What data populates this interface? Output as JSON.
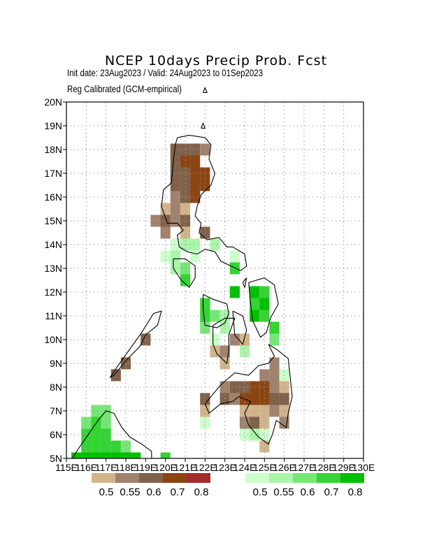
{
  "header": {
    "title": "NCEP 10days Precip Prob. Fcst",
    "subtitle_dates": "Init date: 23Aug2023 / Valid: 24Aug2023 to 01Sep2023",
    "subtitle_method": "Reg Calibrated (GCM-empirical)"
  },
  "axes": {
    "lat_labels": [
      "20N",
      "19N",
      "18N",
      "17N",
      "16N",
      "15N",
      "14N",
      "13N",
      "12N",
      "11N",
      "10N",
      "9N",
      "8N",
      "7N",
      "6N",
      "5N"
    ],
    "lon_labels": [
      "115E",
      "116E",
      "117E",
      "118E",
      "119E",
      "120E",
      "121E",
      "122E",
      "123E",
      "124E",
      "125E",
      "126E",
      "127E",
      "128E",
      "129E",
      "130E"
    ]
  },
  "legend": {
    "dry": {
      "colors": [
        "#d2b48c",
        "#a0826d",
        "#80624a",
        "#8b4513",
        "#a52a2a"
      ],
      "labels": [
        "0.5",
        "0.55",
        "0.6",
        "0.7",
        "0.8"
      ]
    },
    "wet": {
      "colors": [
        "#ccffcc",
        "#aaf5aa",
        "#77e677",
        "#33d433",
        "#00c000"
      ],
      "labels": [
        "0.5",
        "0.55",
        "0.6",
        "0.7",
        "0.8"
      ]
    }
  },
  "map_data": {
    "extent": {
      "lon": [
        115,
        130
      ],
      "lat": [
        5,
        20
      ]
    },
    "cell_size_deg": 0.5,
    "colors": {
      "dry_50": "#d2b48c",
      "dry_55": "#a0826d",
      "dry_60": "#80624a",
      "dry_70": "#8b4513",
      "wet_50": "#ccffcc",
      "wet_55": "#aaf5aa",
      "wet_60": "#77e677",
      "wet_70": "#33d433",
      "wet_80": "#00c000"
    },
    "cells": [
      {
        "lon": 119,
        "lat": 10,
        "c": "dry_60"
      },
      {
        "lon": 118,
        "lat": 9,
        "c": "dry_60"
      },
      {
        "lon": 117.5,
        "lat": 8.5,
        "c": "dry_60"
      },
      {
        "lon": 121,
        "lat": 18,
        "c": "dry_60"
      },
      {
        "lon": 120.5,
        "lat": 18,
        "c": "dry_60"
      },
      {
        "lon": 121.5,
        "lat": 18,
        "c": "dry_60"
      },
      {
        "lon": 122,
        "lat": 18,
        "c": "dry_55"
      },
      {
        "lon": 120.5,
        "lat": 17.5,
        "c": "dry_60"
      },
      {
        "lon": 121,
        "lat": 17.5,
        "c": "dry_70"
      },
      {
        "lon": 121.5,
        "lat": 17.5,
        "c": "dry_70"
      },
      {
        "lon": 120.5,
        "lat": 17,
        "c": "dry_60"
      },
      {
        "lon": 121,
        "lat": 17,
        "c": "dry_60"
      },
      {
        "lon": 121.5,
        "lat": 17,
        "c": "dry_70"
      },
      {
        "lon": 122,
        "lat": 17,
        "c": "dry_70"
      },
      {
        "lon": 120.5,
        "lat": 16.5,
        "c": "dry_60"
      },
      {
        "lon": 121,
        "lat": 16.5,
        "c": "dry_60"
      },
      {
        "lon": 121.5,
        "lat": 16.5,
        "c": "dry_70"
      },
      {
        "lon": 122,
        "lat": 16.5,
        "c": "dry_70"
      },
      {
        "lon": 120.5,
        "lat": 16,
        "c": "dry_55"
      },
      {
        "lon": 121,
        "lat": 16,
        "c": "dry_60"
      },
      {
        "lon": 121.5,
        "lat": 16,
        "c": "dry_70"
      },
      {
        "lon": 120,
        "lat": 15.5,
        "c": "dry_50"
      },
      {
        "lon": 120.5,
        "lat": 15.5,
        "c": "dry_55"
      },
      {
        "lon": 121,
        "lat": 15.5,
        "c": "dry_50"
      },
      {
        "lon": 119.5,
        "lat": 15,
        "c": "dry_55"
      },
      {
        "lon": 120,
        "lat": 15,
        "c": "dry_60"
      },
      {
        "lon": 120.5,
        "lat": 15,
        "c": "dry_55"
      },
      {
        "lon": 121,
        "lat": 15,
        "c": "dry_60"
      },
      {
        "lon": 120,
        "lat": 14.5,
        "c": "dry_55"
      },
      {
        "lon": 121,
        "lat": 14.5,
        "c": "dry_50"
      },
      {
        "lon": 122,
        "lat": 14.5,
        "c": "dry_60"
      },
      {
        "lon": 120.5,
        "lat": 14,
        "c": "wet_50"
      },
      {
        "lon": 121,
        "lat": 14,
        "c": "wet_55"
      },
      {
        "lon": 121.5,
        "lat": 14,
        "c": "wet_55"
      },
      {
        "lon": 122.5,
        "lat": 14,
        "c": "wet_55"
      },
      {
        "lon": 120,
        "lat": 13.5,
        "c": "wet_50"
      },
      {
        "lon": 120.5,
        "lat": 13.5,
        "c": "wet_55"
      },
      {
        "lon": 121.5,
        "lat": 13.5,
        "c": "wet_50"
      },
      {
        "lon": 123.5,
        "lat": 13.5,
        "c": "wet_50"
      },
      {
        "lon": 120.5,
        "lat": 13,
        "c": "wet_55"
      },
      {
        "lon": 121,
        "lat": 13,
        "c": "wet_60"
      },
      {
        "lon": 123.5,
        "lat": 13,
        "c": "wet_70"
      },
      {
        "lon": 121,
        "lat": 12.5,
        "c": "wet_70"
      },
      {
        "lon": 123.5,
        "lat": 12,
        "c": "wet_80"
      },
      {
        "lon": 124.5,
        "lat": 12,
        "c": "wet_80"
      },
      {
        "lon": 125,
        "lat": 12,
        "c": "wet_70"
      },
      {
        "lon": 122,
        "lat": 11.5,
        "c": "wet_70"
      },
      {
        "lon": 124.5,
        "lat": 11.5,
        "c": "wet_70"
      },
      {
        "lon": 125,
        "lat": 11.5,
        "c": "wet_80"
      },
      {
        "lon": 122,
        "lat": 11,
        "c": "wet_70"
      },
      {
        "lon": 122.5,
        "lat": 11,
        "c": "wet_60"
      },
      {
        "lon": 123,
        "lat": 11,
        "c": "wet_55"
      },
      {
        "lon": 124.5,
        "lat": 11,
        "c": "wet_80"
      },
      {
        "lon": 125,
        "lat": 11,
        "c": "wet_70"
      },
      {
        "lon": 122,
        "lat": 10.5,
        "c": "wet_60"
      },
      {
        "lon": 123,
        "lat": 10.5,
        "c": "wet_55"
      },
      {
        "lon": 125.5,
        "lat": 10.5,
        "c": "wet_70"
      },
      {
        "lon": 122.5,
        "lat": 10,
        "c": "wet_50"
      },
      {
        "lon": 123.5,
        "lat": 10,
        "c": "dry_55"
      },
      {
        "lon": 124,
        "lat": 10,
        "c": "dry_50"
      },
      {
        "lon": 125.5,
        "lat": 10,
        "c": "wet_60"
      },
      {
        "lon": 122.5,
        "lat": 9.5,
        "c": "dry_50"
      },
      {
        "lon": 123,
        "lat": 9.5,
        "c": "dry_55"
      },
      {
        "lon": 124,
        "lat": 9.5,
        "c": "wet_55"
      },
      {
        "lon": 123,
        "lat": 9,
        "c": "dry_50"
      },
      {
        "lon": 125.5,
        "lat": 9,
        "c": "dry_55"
      },
      {
        "lon": 125,
        "lat": 8.5,
        "c": "dry_55"
      },
      {
        "lon": 125.5,
        "lat": 8.5,
        "c": "dry_55"
      },
      {
        "lon": 126,
        "lat": 8.5,
        "c": "wet_50"
      },
      {
        "lon": 123,
        "lat": 8,
        "c": "dry_55"
      },
      {
        "lon": 123.5,
        "lat": 8,
        "c": "dry_60"
      },
      {
        "lon": 124,
        "lat": 8,
        "c": "dry_60"
      },
      {
        "lon": 124.5,
        "lat": 8,
        "c": "dry_70"
      },
      {
        "lon": 125,
        "lat": 8,
        "c": "dry_70"
      },
      {
        "lon": 125.5,
        "lat": 8,
        "c": "dry_55"
      },
      {
        "lon": 126,
        "lat": 8,
        "c": "dry_50"
      },
      {
        "lon": 122,
        "lat": 7.5,
        "c": "dry_60"
      },
      {
        "lon": 123,
        "lat": 7.5,
        "c": "dry_60"
      },
      {
        "lon": 123.5,
        "lat": 7.5,
        "c": "dry_55"
      },
      {
        "lon": 124,
        "lat": 7.5,
        "c": "dry_70"
      },
      {
        "lon": 124.5,
        "lat": 7.5,
        "c": "dry_70"
      },
      {
        "lon": 125,
        "lat": 7.5,
        "c": "dry_70"
      },
      {
        "lon": 125.5,
        "lat": 7.5,
        "c": "dry_60"
      },
      {
        "lon": 126,
        "lat": 7.5,
        "c": "dry_60"
      },
      {
        "lon": 122,
        "lat": 7,
        "c": "dry_50"
      },
      {
        "lon": 124,
        "lat": 7,
        "c": "dry_50"
      },
      {
        "lon": 124.5,
        "lat": 7,
        "c": "dry_50"
      },
      {
        "lon": 125,
        "lat": 7,
        "c": "dry_50"
      },
      {
        "lon": 125.5,
        "lat": 7,
        "c": "dry_55"
      },
      {
        "lon": 126,
        "lat": 7,
        "c": "dry_50"
      },
      {
        "lon": 122,
        "lat": 6.5,
        "c": "wet_50"
      },
      {
        "lon": 124,
        "lat": 6.5,
        "c": "dry_55"
      },
      {
        "lon": 124.5,
        "lat": 6.5,
        "c": "dry_60"
      },
      {
        "lon": 125,
        "lat": 6.5,
        "c": "dry_50"
      },
      {
        "lon": 126,
        "lat": 6.5,
        "c": "dry_55"
      },
      {
        "lon": 124,
        "lat": 6,
        "c": "wet_50"
      },
      {
        "lon": 124.5,
        "lat": 6,
        "c": "wet_55"
      },
      {
        "lon": 125,
        "lat": 6,
        "c": "wet_50"
      },
      {
        "lon": 125,
        "lat": 5.5,
        "c": "dry_50"
      },
      {
        "lon": 116.5,
        "lat": 7,
        "c": "wet_60"
      },
      {
        "lon": 117,
        "lat": 7,
        "c": "wet_60"
      },
      {
        "lon": 116,
        "lat": 6.5,
        "c": "wet_60"
      },
      {
        "lon": 116.5,
        "lat": 6.5,
        "c": "wet_70"
      },
      {
        "lon": 117,
        "lat": 6.5,
        "c": "wet_60"
      },
      {
        "lon": 116,
        "lat": 6,
        "c": "wet_70"
      },
      {
        "lon": 116.5,
        "lat": 6,
        "c": "wet_70"
      },
      {
        "lon": 117,
        "lat": 6,
        "c": "wet_70"
      },
      {
        "lon": 116,
        "lat": 5.5,
        "c": "wet_70"
      },
      {
        "lon": 116.5,
        "lat": 5.5,
        "c": "wet_70"
      },
      {
        "lon": 117,
        "lat": 5.5,
        "c": "wet_70"
      },
      {
        "lon": 117.5,
        "lat": 5.5,
        "c": "wet_70"
      },
      {
        "lon": 118,
        "lat": 5.5,
        "c": "wet_60"
      },
      {
        "lon": 115.5,
        "lat": 5,
        "c": "wet_80"
      },
      {
        "lon": 116,
        "lat": 5,
        "c": "wet_80"
      },
      {
        "lon": 116.5,
        "lat": 5,
        "c": "wet_80"
      },
      {
        "lon": 117,
        "lat": 5,
        "c": "wet_80"
      },
      {
        "lon": 117.5,
        "lat": 5,
        "c": "wet_80"
      },
      {
        "lon": 118,
        "lat": 5,
        "c": "wet_80"
      },
      {
        "lon": 118.5,
        "lat": 5,
        "c": "wet_80"
      },
      {
        "lon": 120,
        "lat": 5,
        "c": "wet_70"
      }
    ],
    "coastlines": [
      [
        [
          120.6,
          18.5
        ],
        [
          121.2,
          18.6
        ],
        [
          122.0,
          18.5
        ],
        [
          122.3,
          18.2
        ],
        [
          122.2,
          17.6
        ],
        [
          122.5,
          17.0
        ],
        [
          122.3,
          16.5
        ],
        [
          121.8,
          16.1
        ],
        [
          121.6,
          15.6
        ],
        [
          121.5,
          15.2
        ],
        [
          121.8,
          14.9
        ],
        [
          121.7,
          14.5
        ],
        [
          122.1,
          14.2
        ],
        [
          122.7,
          14.3
        ],
        [
          123.1,
          13.9
        ],
        [
          123.4,
          13.9
        ],
        [
          124.0,
          13.6
        ],
        [
          124.1,
          13.1
        ],
        [
          123.8,
          12.9
        ],
        [
          123.3,
          13.1
        ],
        [
          122.8,
          13.3
        ],
        [
          122.5,
          13.7
        ],
        [
          122.0,
          13.8
        ],
        [
          121.6,
          13.6
        ],
        [
          121.1,
          13.7
        ],
        [
          120.7,
          13.9
        ],
        [
          120.6,
          14.4
        ],
        [
          120.9,
          14.6
        ],
        [
          120.6,
          14.9
        ],
        [
          120.1,
          14.9
        ],
        [
          119.8,
          15.6
        ],
        [
          119.9,
          16.3
        ],
        [
          120.3,
          16.6
        ],
        [
          120.4,
          17.5
        ],
        [
          120.5,
          18.2
        ],
        [
          120.6,
          18.5
        ]
      ],
      [
        [
          119.0,
          10.2
        ],
        [
          119.6,
          10.6
        ],
        [
          119.8,
          11.2
        ],
        [
          119.4,
          11.1
        ],
        [
          118.8,
          10.3
        ],
        [
          118.2,
          9.6
        ],
        [
          117.6,
          8.9
        ],
        [
          117.2,
          8.4
        ],
        [
          117.4,
          8.5
        ],
        [
          118.1,
          9.2
        ],
        [
          118.7,
          9.7
        ],
        [
          119.0,
          10.2
        ]
      ],
      [
        [
          120.4,
          13.4
        ],
        [
          121.0,
          13.4
        ],
        [
          121.5,
          13.1
        ],
        [
          121.5,
          12.6
        ],
        [
          121.2,
          12.2
        ],
        [
          120.8,
          12.5
        ],
        [
          120.4,
          13.0
        ],
        [
          120.4,
          13.4
        ]
      ],
      [
        [
          121.9,
          11.9
        ],
        [
          122.4,
          11.7
        ],
        [
          123.1,
          11.5
        ],
        [
          123.2,
          11.1
        ],
        [
          123.0,
          10.7
        ],
        [
          122.6,
          10.5
        ],
        [
          122.0,
          10.6
        ],
        [
          121.9,
          11.3
        ],
        [
          121.9,
          11.9
        ]
      ],
      [
        [
          122.4,
          10.6
        ],
        [
          123.0,
          10.9
        ],
        [
          123.5,
          10.9
        ],
        [
          123.2,
          10.2
        ],
        [
          123.2,
          9.5
        ],
        [
          123.1,
          9.0
        ],
        [
          122.6,
          9.4
        ],
        [
          122.4,
          9.8
        ],
        [
          122.4,
          10.6
        ]
      ],
      [
        [
          123.4,
          11.2
        ],
        [
          123.9,
          11.0
        ],
        [
          124.1,
          10.4
        ],
        [
          123.9,
          9.8
        ],
        [
          123.5,
          10.2
        ],
        [
          123.4,
          11.2
        ]
      ],
      [
        [
          124.2,
          12.4
        ],
        [
          125.0,
          12.6
        ],
        [
          125.5,
          12.3
        ],
        [
          125.7,
          11.5
        ],
        [
          125.3,
          10.9
        ],
        [
          125.1,
          10.3
        ],
        [
          124.8,
          10.1
        ],
        [
          124.4,
          10.8
        ],
        [
          124.3,
          11.5
        ],
        [
          124.2,
          12.4
        ]
      ],
      [
        [
          125.2,
          9.8
        ],
        [
          125.6,
          9.6
        ],
        [
          126.2,
          9.2
        ],
        [
          126.3,
          8.4
        ],
        [
          126.4,
          7.6
        ],
        [
          126.2,
          6.9
        ],
        [
          126.1,
          6.3
        ],
        [
          125.6,
          6.6
        ],
        [
          125.4,
          6.0
        ],
        [
          125.2,
          5.6
        ],
        [
          124.7,
          5.9
        ],
        [
          124.2,
          6.4
        ],
        [
          124.0,
          6.9
        ],
        [
          124.3,
          7.4
        ],
        [
          123.7,
          7.6
        ],
        [
          123.4,
          7.4
        ],
        [
          122.8,
          7.3
        ],
        [
          122.2,
          6.9
        ],
        [
          122.0,
          7.3
        ],
        [
          122.5,
          7.8
        ],
        [
          122.8,
          8.1
        ],
        [
          123.5,
          8.6
        ],
        [
          124.2,
          8.5
        ],
        [
          124.7,
          8.9
        ],
        [
          125.2,
          9.0
        ],
        [
          125.5,
          9.3
        ],
        [
          125.2,
          9.8
        ]
      ],
      [
        [
          119.3,
          5.3
        ],
        [
          118.8,
          5.6
        ],
        [
          118.2,
          5.9
        ],
        [
          117.8,
          6.3
        ],
        [
          117.4,
          6.9
        ],
        [
          117.0,
          7.0
        ],
        [
          116.6,
          6.6
        ],
        [
          116.1,
          6.0
        ],
        [
          115.6,
          5.4
        ],
        [
          115.3,
          5.0
        ],
        [
          119.3,
          5.0
        ],
        [
          119.3,
          5.3
        ]
      ],
      [
        [
          121.8,
          18.9
        ],
        [
          121.9,
          19.1
        ],
        [
          122.0,
          18.9
        ],
        [
          121.8,
          18.9
        ]
      ],
      [
        [
          121.9,
          20.4
        ],
        [
          122.0,
          20.6
        ],
        [
          122.1,
          20.4
        ],
        [
          121.9,
          20.4
        ]
      ],
      [
        [
          123.9,
          12.4
        ],
        [
          124.1,
          12.6
        ],
        [
          124.0,
          12.2
        ],
        [
          123.9,
          12.4
        ]
      ]
    ]
  }
}
